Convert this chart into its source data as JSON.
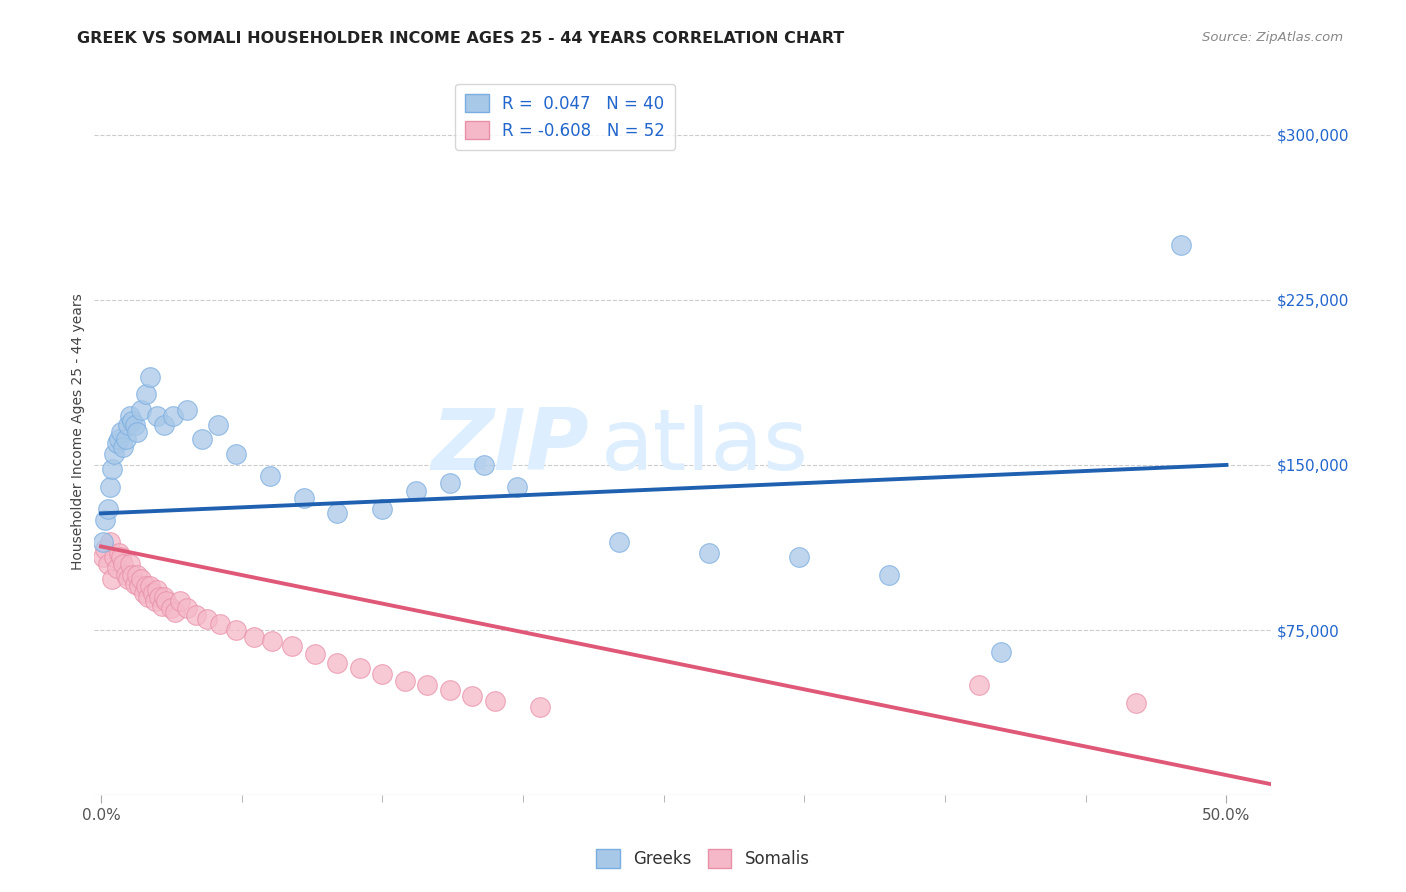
{
  "title": "GREEK VS SOMALI HOUSEHOLDER INCOME AGES 25 - 44 YEARS CORRELATION CHART",
  "source": "Source: ZipAtlas.com",
  "ylabel": "Householder Income Ages 25 - 44 years",
  "ytick_labels": [
    "$75,000",
    "$150,000",
    "$225,000",
    "$300,000"
  ],
  "ytick_vals": [
    75000,
    150000,
    225000,
    300000
  ],
  "ylim": [
    0,
    330000
  ],
  "xlim": [
    -0.003,
    0.52
  ],
  "legend_greek": "R =  0.047   N = 40",
  "legend_somali": "R = -0.608   N = 52",
  "blue_fill": "#a8c8e8",
  "blue_edge": "#7aade0",
  "pink_fill": "#f5b8c8",
  "pink_edge": "#e890a8",
  "trendline_blue": "#2060b0",
  "trendline_pink": "#e05878",
  "watermark": "ZIPatlas",
  "watermark_color": "#dceeff",
  "blue_trendline_x": [
    0.0,
    0.5
  ],
  "blue_trendline_y": [
    128000,
    150000
  ],
  "pink_trendline_x": [
    0.0,
    0.52
  ],
  "pink_trendline_y": [
    113000,
    5000
  ],
  "greek_x": [
    0.001,
    0.002,
    0.003,
    0.004,
    0.005,
    0.006,
    0.007,
    0.008,
    0.009,
    0.01,
    0.011,
    0.012,
    0.013,
    0.014,
    0.015,
    0.016,
    0.018,
    0.02,
    0.022,
    0.025,
    0.028,
    0.032,
    0.038,
    0.045,
    0.052,
    0.06,
    0.075,
    0.09,
    0.105,
    0.125,
    0.14,
    0.155,
    0.17,
    0.185,
    0.23,
    0.27,
    0.31,
    0.35,
    0.4,
    0.48
  ],
  "greek_y": [
    115000,
    125000,
    130000,
    140000,
    148000,
    155000,
    160000,
    162000,
    165000,
    158000,
    162000,
    168000,
    172000,
    170000,
    168000,
    165000,
    175000,
    182000,
    190000,
    172000,
    168000,
    172000,
    175000,
    162000,
    168000,
    155000,
    145000,
    135000,
    128000,
    130000,
    138000,
    142000,
    150000,
    140000,
    115000,
    110000,
    108000,
    100000,
    65000,
    250000
  ],
  "somali_x": [
    0.001,
    0.002,
    0.003,
    0.004,
    0.005,
    0.006,
    0.007,
    0.008,
    0.009,
    0.01,
    0.011,
    0.012,
    0.013,
    0.014,
    0.015,
    0.016,
    0.017,
    0.018,
    0.019,
    0.02,
    0.021,
    0.022,
    0.023,
    0.024,
    0.025,
    0.026,
    0.027,
    0.028,
    0.029,
    0.031,
    0.033,
    0.035,
    0.038,
    0.042,
    0.047,
    0.053,
    0.06,
    0.068,
    0.076,
    0.085,
    0.095,
    0.105,
    0.115,
    0.125,
    0.135,
    0.145,
    0.155,
    0.165,
    0.175,
    0.195,
    0.39,
    0.46
  ],
  "somali_y": [
    108000,
    112000,
    105000,
    115000,
    98000,
    108000,
    103000,
    110000,
    108000,
    105000,
    100000,
    98000,
    105000,
    100000,
    96000,
    100000,
    95000,
    98000,
    92000,
    95000,
    90000,
    95000,
    92000,
    88000,
    93000,
    90000,
    86000,
    90000,
    88000,
    85000,
    83000,
    88000,
    85000,
    82000,
    80000,
    78000,
    75000,
    72000,
    70000,
    68000,
    64000,
    60000,
    58000,
    55000,
    52000,
    50000,
    48000,
    45000,
    43000,
    40000,
    50000,
    42000
  ]
}
